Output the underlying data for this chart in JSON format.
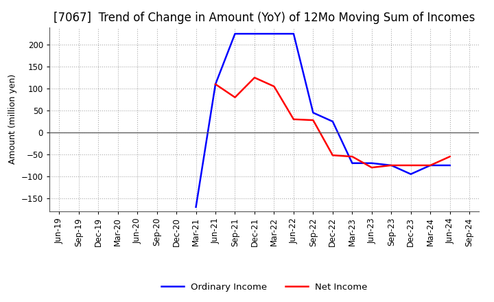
{
  "title": "[7067]  Trend of Change in Amount (YoY) of 12Mo Moving Sum of Incomes",
  "ylabel": "Amount (million yen)",
  "ylim": [
    -180,
    240
  ],
  "yticks": [
    -150,
    -100,
    -50,
    0,
    50,
    100,
    150,
    200
  ],
  "x_labels": [
    "Jun-19",
    "Sep-19",
    "Dec-19",
    "Mar-20",
    "Jun-20",
    "Sep-20",
    "Dec-20",
    "Mar-21",
    "Jun-21",
    "Sep-21",
    "Dec-21",
    "Mar-22",
    "Jun-22",
    "Sep-22",
    "Dec-22",
    "Mar-23",
    "Jun-23",
    "Sep-23",
    "Dec-23",
    "Mar-24",
    "Jun-24",
    "Sep-24"
  ],
  "ordinary_income": [
    null,
    null,
    null,
    null,
    null,
    null,
    null,
    -170,
    110,
    225,
    225,
    225,
    225,
    45,
    25,
    -70,
    -70,
    -75,
    -95,
    -75,
    -75,
    null
  ],
  "net_income": [
    null,
    null,
    null,
    null,
    null,
    null,
    null,
    null,
    110,
    80,
    125,
    105,
    30,
    28,
    -52,
    -55,
    -80,
    -75,
    -75,
    -75,
    -55,
    null
  ],
  "ordinary_color": "#0000ff",
  "net_color": "#ff0000",
  "line_width": 1.8,
  "title_fontsize": 12,
  "label_fontsize": 9,
  "tick_fontsize": 8.5,
  "background_color": "#ffffff",
  "grid_color": "#aaaaaa"
}
